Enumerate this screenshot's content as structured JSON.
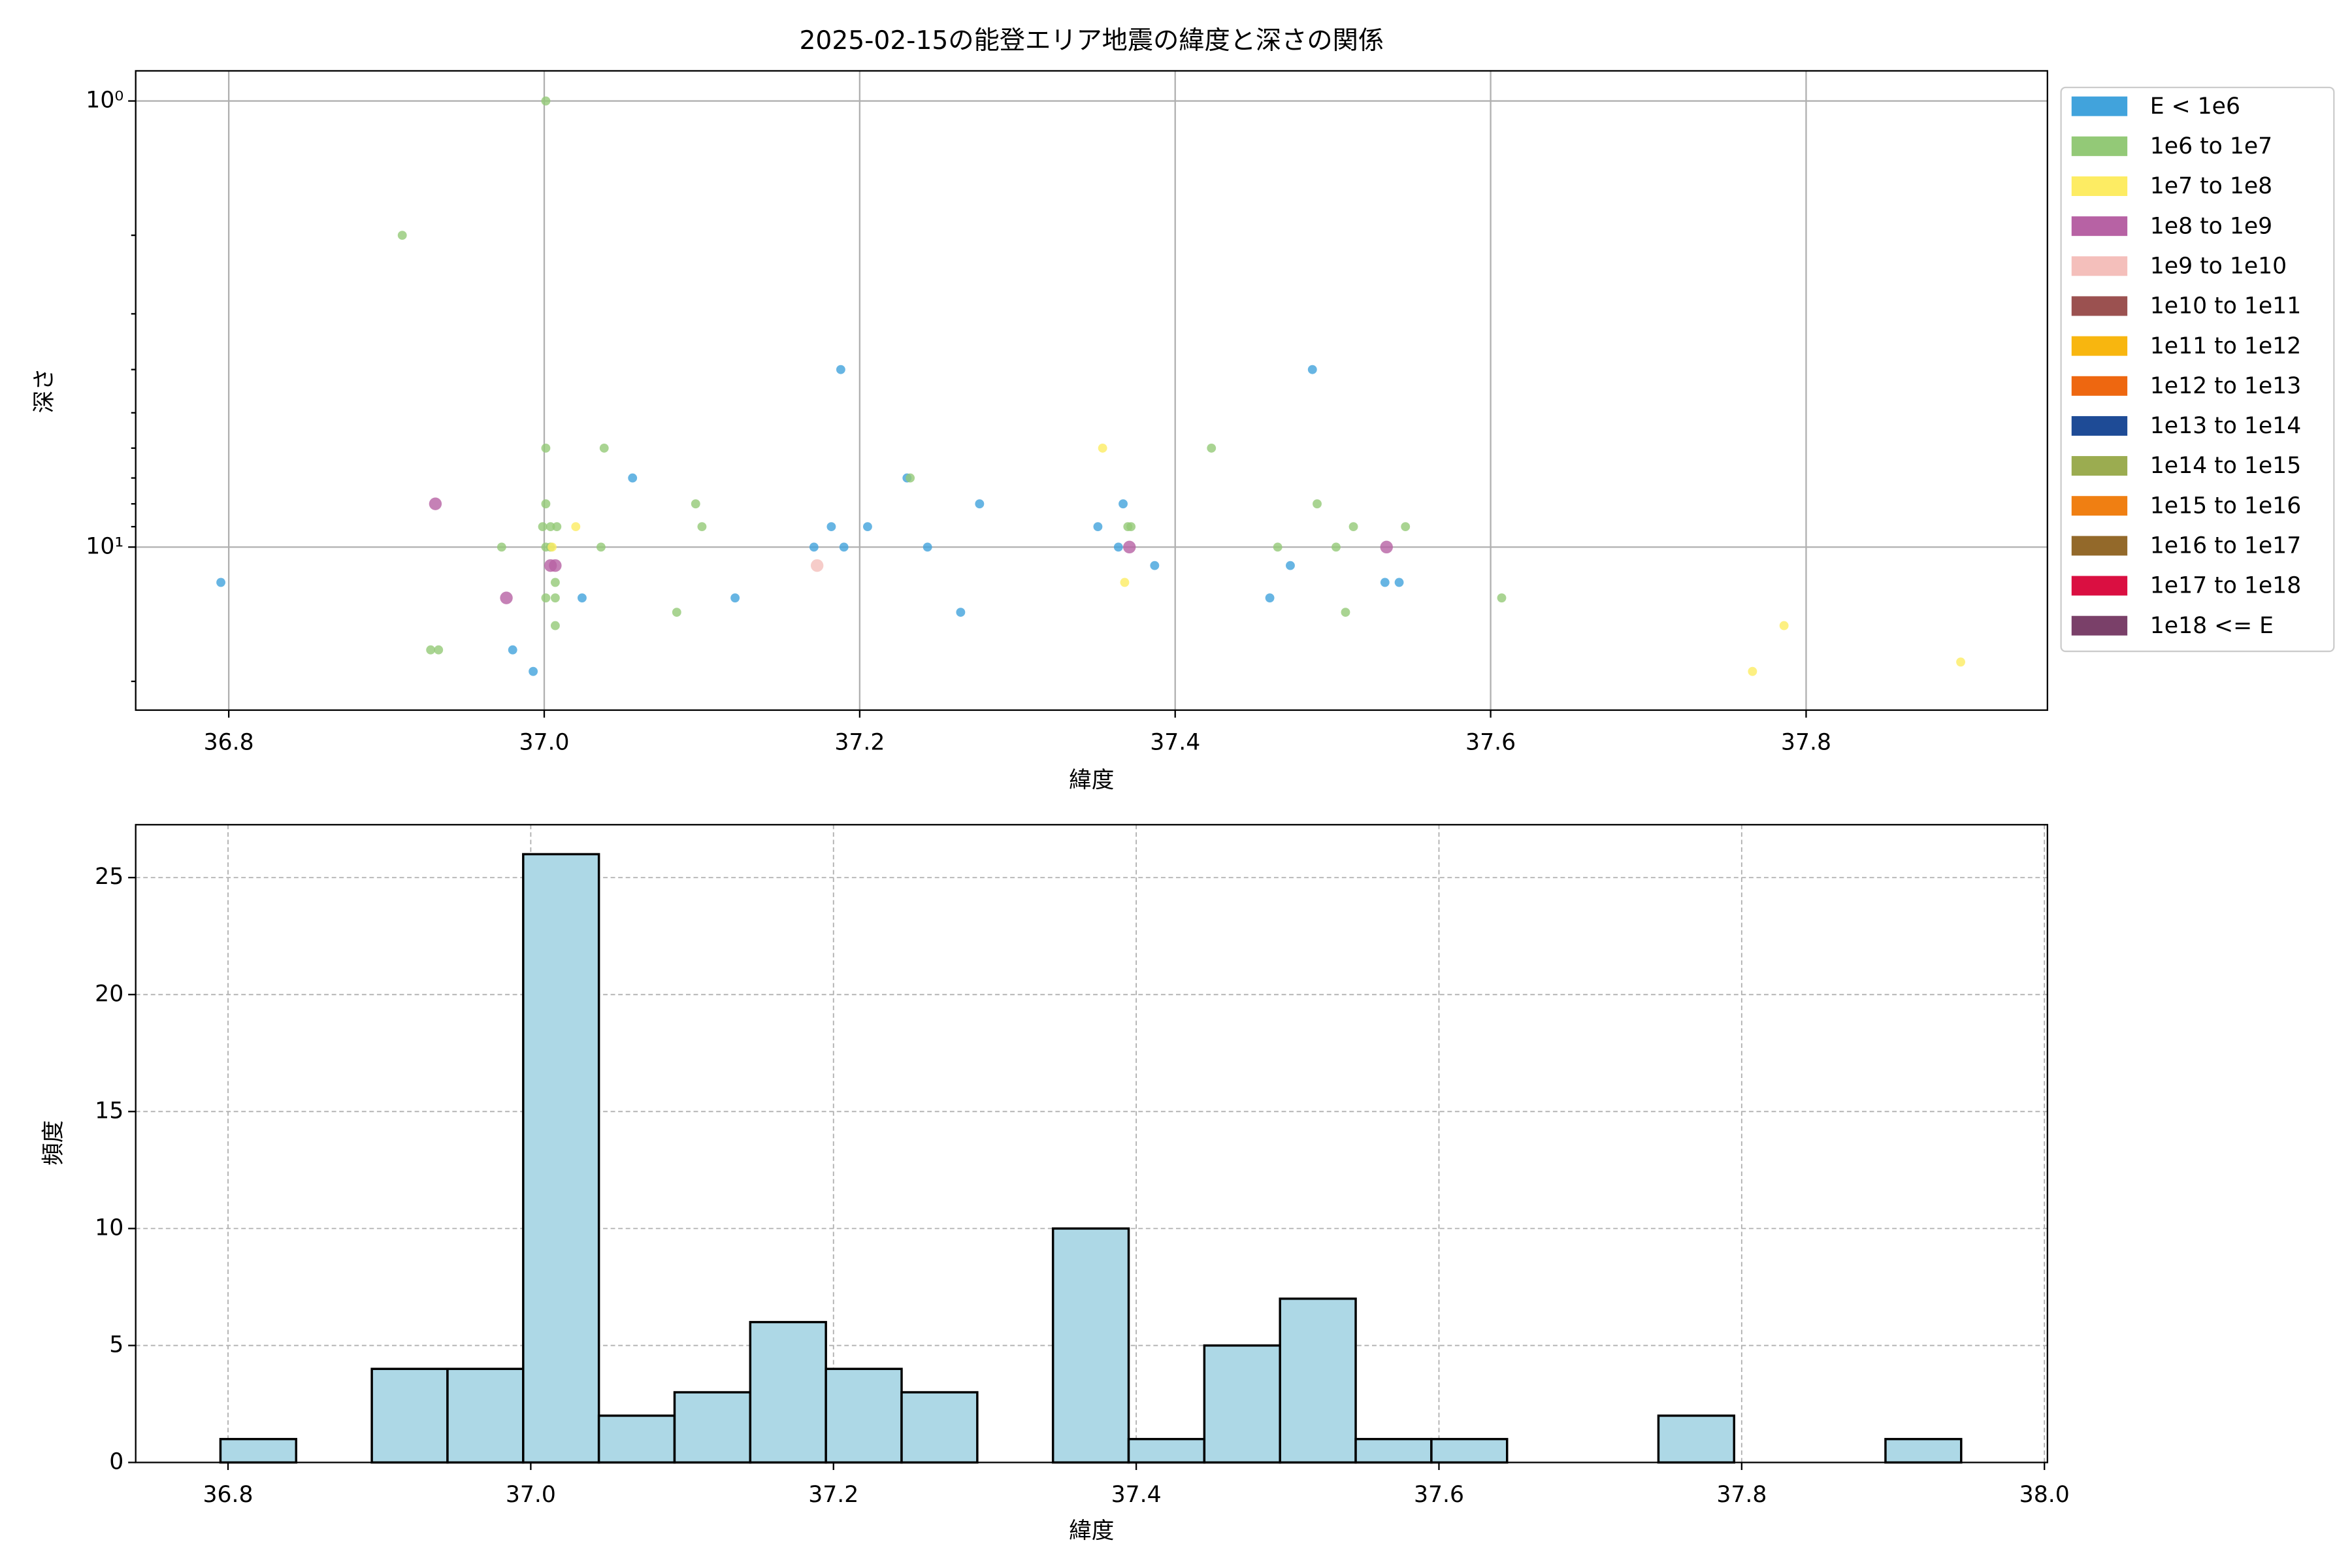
{
  "chart_data": [
    {
      "type": "scatter",
      "title": "2025-02-15の能登エリア地震の緯度と深さの関係",
      "xlabel": "緯度",
      "ylabel": "深さ",
      "log_y": true,
      "grid": true,
      "legend": "outside upper right",
      "xlim": [
        36.741,
        37.953
      ],
      "ylim": [
        23.2,
        0.856
      ],
      "xticks": [
        36.8,
        {
          "value": 37.0,
          "label": "37.0"
        },
        37.2,
        37.4,
        37.6,
        37.8
      ],
      "yticks": [
        {
          "value": 1,
          "label": "10⁰"
        },
        {
          "value": 10,
          "label": "10¹"
        }
      ],
      "yminorticks": [
        2,
        3,
        4,
        5,
        6,
        7,
        8,
        9,
        20
      ],
      "series": [
        {
          "name": "E < 1e6",
          "color": "#41a3dc",
          "x": [
            36.795,
            36.98,
            36.993,
            37.024,
            37.056,
            37.121,
            37.171,
            37.182,
            37.188,
            37.19,
            37.205,
            37.23,
            37.243,
            37.264,
            37.276,
            37.351,
            37.364,
            37.367,
            37.387,
            37.46,
            37.473,
            37.487,
            37.533,
            37.542
          ],
          "values": [
            12,
            17,
            19,
            13,
            7,
            13,
            10,
            9,
            4,
            10,
            9,
            7,
            10,
            14,
            8,
            9,
            10,
            8,
            11,
            13,
            11,
            4,
            12,
            12
          ]
        },
        {
          "name": "1e6 to 1e7",
          "color": "#93c977",
          "x": [
            37.001,
            36.91,
            36.928,
            36.933,
            36.973,
            37.001,
            37.001,
            36.999,
            37.004,
            37.008,
            37.001,
            37.004,
            37.001,
            37.007,
            37.007,
            37.007,
            37.038,
            37.036,
            37.084,
            37.096,
            37.1,
            37.232,
            37.37,
            37.372,
            37.423,
            37.465,
            37.49,
            37.502,
            37.508,
            37.513,
            37.546,
            37.607
          ],
          "values": [
            1,
            2,
            17,
            17,
            10,
            6,
            8,
            9,
            9,
            9,
            10,
            10,
            13,
            13,
            12,
            15,
            6,
            10,
            14,
            8,
            9,
            7,
            9,
            9,
            6,
            10,
            8,
            10,
            14,
            9,
            9,
            13
          ]
        },
        {
          "name": "1e7 to 1e8",
          "color": "#fdec63",
          "x": [
            37.354,
            37.368,
            37.02,
            37.005,
            37.766,
            37.786,
            37.898
          ],
          "values": [
            6,
            12,
            9,
            10,
            19,
            15,
            18.1
          ]
        },
        {
          "name": "1e8 to 1e9",
          "color": "#b762a4",
          "x": [
            36.931,
            36.976,
            37.004,
            37.007,
            37.371,
            37.534
          ],
          "values": [
            8,
            13,
            11,
            11,
            10,
            10
          ]
        },
        {
          "name": "1e9 to 1e10",
          "color": "#f4bfbb",
          "x": [
            37.173
          ],
          "values": [
            11
          ]
        },
        {
          "name": "1e10 to 1e11",
          "color": "#9b5150",
          "x": [],
          "values": []
        },
        {
          "name": "1e11 to 1e12",
          "color": "#f8b60f",
          "x": [],
          "values": []
        },
        {
          "name": "1e12 to 1e13",
          "color": "#ee6710",
          "x": [],
          "values": []
        },
        {
          "name": "1e13 to 1e14",
          "color": "#1e4b96",
          "x": [],
          "values": []
        },
        {
          "name": "1e14 to 1e15",
          "color": "#9bac50",
          "x": [],
          "values": []
        },
        {
          "name": "1e15 to 1e16",
          "color": "#f07f12",
          "x": [],
          "values": []
        },
        {
          "name": "1e16 to 1e17",
          "color": "#93692a",
          "x": [],
          "values": []
        },
        {
          "name": "1e17 to 1e18",
          "color": "#da0f41",
          "x": [],
          "values": []
        },
        {
          "name": "1e18 <= E",
          "color": "#7a4069",
          "x": [],
          "values": []
        }
      ]
    },
    {
      "type": "histogram",
      "xlabel": "緯度",
      "ylabel": "頻度",
      "color": "#add8e6",
      "edgecolor": "#000000",
      "grid": true,
      "xlim": [
        36.739,
        38.002
      ],
      "ylim": [
        0,
        27.26
      ],
      "xticks": [
        36.8,
        {
          "value": 37.0,
          "label": "37.0"
        },
        37.2,
        37.4,
        37.6,
        37.8,
        {
          "value": 38.0,
          "label": "38.0"
        }
      ],
      "yticks": [
        0,
        5,
        10,
        15,
        20,
        25
      ],
      "bins": [
        36.795,
        36.845,
        36.895,
        36.945,
        36.995,
        37.045,
        37.095,
        37.145,
        37.195,
        37.245,
        37.295,
        37.345,
        37.395,
        37.445,
        37.495,
        37.545,
        37.595,
        37.645,
        37.695,
        37.745,
        37.795,
        37.845,
        37.895,
        37.945
      ],
      "values": [
        1,
        0,
        4,
        4,
        26,
        2,
        3,
        6,
        4,
        3,
        0,
        10,
        1,
        5,
        7,
        1,
        1,
        0,
        0,
        2,
        0,
        0,
        1
      ]
    }
  ]
}
